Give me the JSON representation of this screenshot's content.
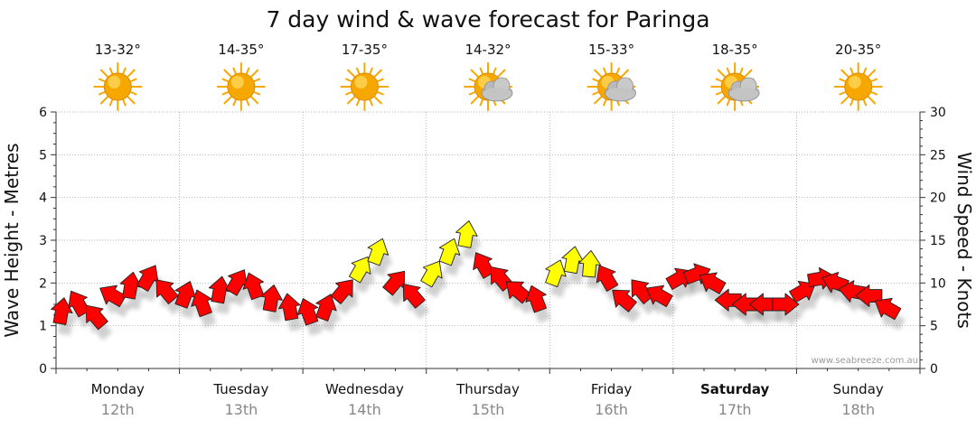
{
  "colors": {
    "background": "#ffffff",
    "grid": "#999999",
    "axis": "#333333",
    "arrow_high": "#ff0000",
    "arrow_mid": "#ffff00",
    "arrow_stroke": "#222222",
    "sun": "#f6a800",
    "cloud": "#b9b9b9"
  },
  "chart_data": {
    "type": "wind-wave-forecast",
    "title": "7 day wind & wave forecast for Paringa",
    "ylabel_left": "Wave Height - Metres",
    "ylabel_right": "Wind Speed - Knots",
    "ylim_left": [
      0,
      6
    ],
    "ylim_right": [
      0,
      30
    ],
    "yticks_left": [
      "0",
      "1",
      "2",
      "3",
      "4",
      "5",
      "6"
    ],
    "yticks_right": [
      "0",
      "5",
      "10",
      "15",
      "20",
      "25",
      "30"
    ],
    "grid": true,
    "watermark": "www.seabreeze.com.au",
    "days": [
      {
        "name": "Monday",
        "date": "12th",
        "temp": "13-32°",
        "weather": "sunny",
        "bold": false
      },
      {
        "name": "Tuesday",
        "date": "13th",
        "temp": "14-35°",
        "weather": "sunny",
        "bold": false
      },
      {
        "name": "Wednesday",
        "date": "14th",
        "temp": "17-35°",
        "weather": "sunny",
        "bold": false
      },
      {
        "name": "Thursday",
        "date": "15th",
        "temp": "14-32°",
        "weather": "partly-cloudy",
        "bold": false
      },
      {
        "name": "Friday",
        "date": "16th",
        "temp": "15-33°",
        "weather": "partly-cloudy",
        "bold": false
      },
      {
        "name": "Saturday",
        "date": "17th",
        "temp": "18-35°",
        "weather": "partly-cloudy",
        "bold": true
      },
      {
        "name": "Sunday",
        "date": "18th",
        "temp": "20-35°",
        "weather": "sunny",
        "bold": false
      }
    ],
    "wind_series": {
      "name": "Wind Speed (knots)",
      "x_days": [
        0.0,
        0.14,
        0.28,
        0.42,
        0.56,
        0.7,
        0.85,
        1.0,
        1.14,
        1.28,
        1.42,
        1.56,
        1.7,
        1.85,
        2.0,
        2.14,
        2.28,
        2.42,
        2.56,
        2.7,
        2.85,
        3.0,
        3.14,
        3.28,
        3.42,
        3.56,
        3.7,
        3.85,
        4.0,
        4.14,
        4.28,
        4.42,
        4.56,
        4.7,
        4.85,
        5.0,
        5.14,
        5.28,
        5.42,
        5.56,
        5.7,
        5.85,
        6.0,
        6.14,
        6.28,
        6.42,
        6.56,
        6.7
      ],
      "knots": [
        6.5,
        7.5,
        6,
        8.5,
        9.5,
        10.5,
        9,
        8.5,
        7.5,
        9,
        10,
        9.5,
        8,
        7,
        6.5,
        7,
        9,
        11.5,
        13.5,
        10,
        8.5,
        11,
        13.5,
        15.5,
        12,
        10.5,
        9,
        8,
        11,
        12.5,
        12,
        10.5,
        8,
        9,
        8.5,
        10.5,
        11,
        10,
        8,
        7.5,
        7.5,
        7.5,
        9,
        10.5,
        10,
        9,
        8.5,
        7
      ],
      "direction_deg": [
        10,
        330,
        320,
        300,
        10,
        30,
        320,
        20,
        340,
        10,
        30,
        340,
        10,
        350,
        340,
        20,
        40,
        30,
        20,
        40,
        320,
        30,
        20,
        10,
        330,
        320,
        310,
        340,
        20,
        10,
        5,
        330,
        310,
        320,
        300,
        60,
        70,
        300,
        270,
        270,
        270,
        90,
        60,
        80,
        290,
        280,
        270,
        300
      ],
      "colors": [
        "red",
        "red",
        "red",
        "red",
        "red",
        "red",
        "red",
        "red",
        "red",
        "red",
        "red",
        "red",
        "red",
        "red",
        "red",
        "red",
        "red",
        "yellow",
        "yellow",
        "red",
        "red",
        "yellow",
        "yellow",
        "yellow",
        "red",
        "red",
        "red",
        "red",
        "yellow",
        "yellow",
        "yellow",
        "red",
        "red",
        "red",
        "red",
        "red",
        "red",
        "red",
        "red",
        "red",
        "red",
        "red",
        "red",
        "red",
        "red",
        "red",
        "red",
        "red"
      ]
    }
  }
}
